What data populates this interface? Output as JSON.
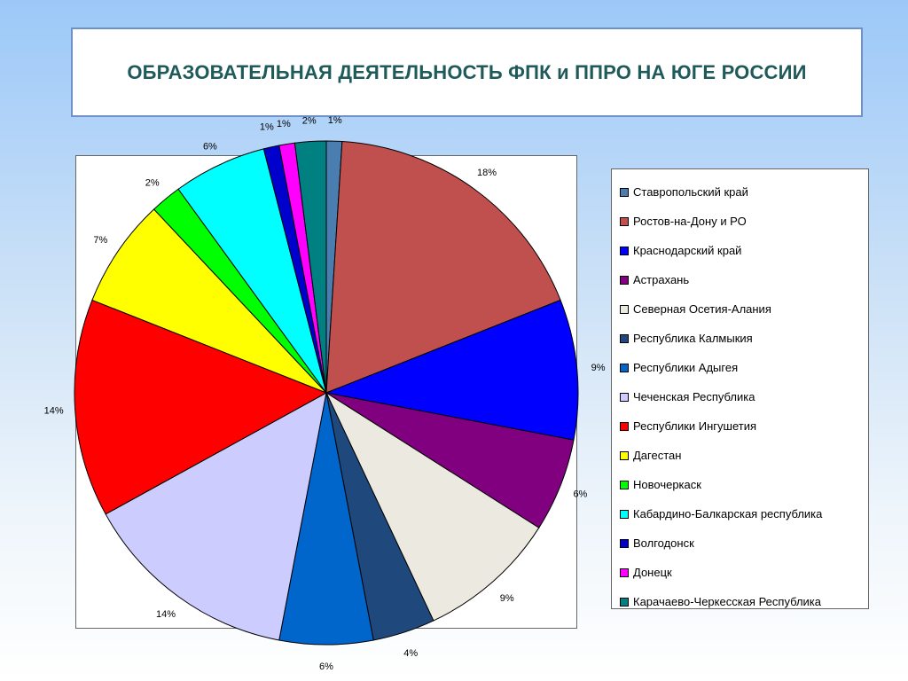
{
  "title": "ОБРАЗОВАТЕЛЬНАЯ ДЕЯТЕЛЬНОСТЬ ФПК и ППРО НА ЮГЕ РОССИИ",
  "chart_data": {
    "type": "pie",
    "title": "ОБРАЗОВАТЕЛЬНАЯ ДЕЯТЕЛЬНОСТЬ ФПК и ППРО НА ЮГЕ РОССИИ",
    "legend_position": "right",
    "slices": [
      {
        "name": "Ставропольский край",
        "value": 1,
        "label": "1%",
        "color": "#4a7eb0"
      },
      {
        "name": "Ростов-на-Дону и РО",
        "value": 18,
        "label": "18%",
        "color": "#c0504d"
      },
      {
        "name": "Краснодарский край",
        "value": 9,
        "label": "9%",
        "color": "#0000ff"
      },
      {
        "name": "Астрахань",
        "value": 6,
        "label": "6%",
        "color": "#800080"
      },
      {
        "name": "Северная Осетия-Алания",
        "value": 9,
        "label": "9%",
        "color": "#ebe9e0"
      },
      {
        "name": "Республика Калмыкия",
        "value": 4,
        "label": "4%",
        "color": "#1f497d"
      },
      {
        "name": "Республики Адыгея",
        "value": 6,
        "label": "6%",
        "color": "#0066cc"
      },
      {
        "name": "Чеченская Республика",
        "value": 14,
        "label": "14%",
        "color": "#ccccff"
      },
      {
        "name": "Республики Ингушетия",
        "value": 14,
        "label": "14%",
        "color": "#ff0000"
      },
      {
        "name": "Дагестан",
        "value": 7,
        "label": "7%",
        "color": "#ffff00"
      },
      {
        "name": "Новочеркаск",
        "value": 2,
        "label": "2%",
        "color": "#00ff00"
      },
      {
        "name": "Кабардино-Балкарская республика",
        "value": 6,
        "label": "6%",
        "color": "#00ffff"
      },
      {
        "name": "Волгодонск",
        "value": 1,
        "label": "1%",
        "color": "#0000cc"
      },
      {
        "name": "Донецк",
        "value": 1,
        "label": "1%",
        "color": "#ff00ff"
      },
      {
        "name": "Карачаево-Черкесская Республика",
        "value": 2,
        "label": "2%",
        "color": "#008080"
      }
    ]
  }
}
